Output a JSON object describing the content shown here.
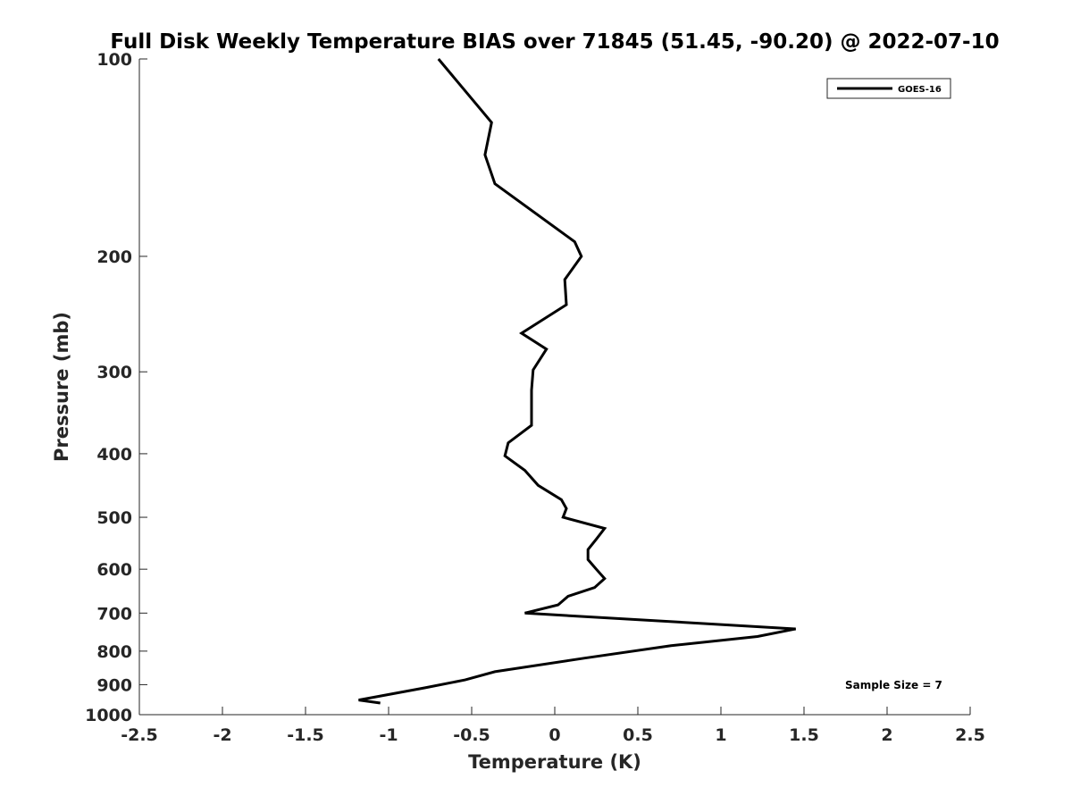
{
  "chart_data": {
    "type": "line",
    "title": "Full Disk Weekly Temperature BIAS over 71845 (51.45, -90.20) @ 2022-07-10",
    "xlabel": "Temperature (K)",
    "ylabel": "Pressure (mb)",
    "xlim": [
      -2.5,
      2.5
    ],
    "ylim": [
      100,
      1000
    ],
    "y_scale": "log",
    "y_reversed": true,
    "grid": false,
    "legend_position": "top-right",
    "x_ticks": [
      -2.5,
      -2,
      -1.5,
      -1,
      -0.5,
      0,
      0.5,
      1,
      1.5,
      2,
      2.5
    ],
    "x_tick_labels": [
      "-2.5",
      "-2",
      "-1.5",
      "-1",
      "-0.5",
      "0",
      "0.5",
      "1",
      "1.5",
      "2",
      "2.5"
    ],
    "y_ticks": [
      100,
      200,
      300,
      400,
      500,
      600,
      700,
      800,
      900,
      1000
    ],
    "y_tick_labels": [
      "100",
      "200",
      "300",
      "400",
      "500",
      "600",
      "700",
      "800",
      "900",
      "1000"
    ],
    "annotation": "Sample Size = 7",
    "series": [
      {
        "name": "GOES-16",
        "color": "#000000",
        "x": [
          -0.7,
          -0.38,
          -0.42,
          -0.36,
          0.12,
          0.16,
          0.06,
          0.07,
          -0.2,
          -0.05,
          -0.13,
          -0.14,
          -0.14,
          -0.14,
          -0.28,
          -0.3,
          -0.18,
          -0.1,
          0.04,
          0.07,
          0.05,
          0.3,
          0.25,
          0.2,
          0.2,
          0.25,
          0.3,
          0.24,
          0.08,
          0.02,
          -0.18,
          1.45,
          1.22,
          0.7,
          0.18,
          -0.36,
          -0.54,
          -0.78,
          -1.18,
          -1.05
        ],
        "y": [
          100,
          125,
          140,
          155,
          190,
          200,
          217,
          237,
          262,
          277,
          298,
          320,
          340,
          362,
          385,
          403,
          424,
          447,
          470,
          485,
          500,
          520,
          540,
          560,
          580,
          600,
          620,
          640,
          660,
          680,
          700,
          740,
          760,
          785,
          820,
          860,
          885,
          910,
          950,
          960
        ]
      }
    ]
  }
}
